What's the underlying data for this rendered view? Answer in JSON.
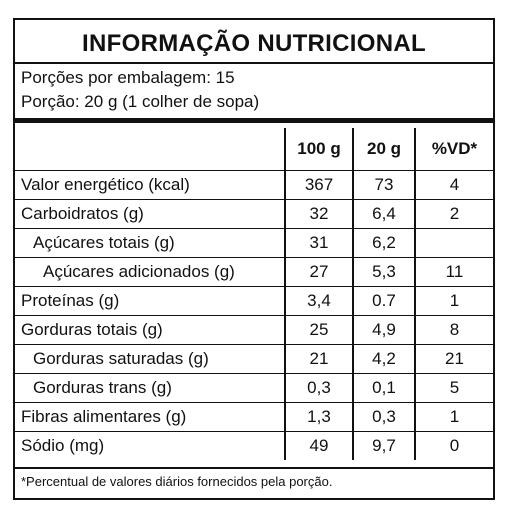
{
  "title": "INFORMAÇÃO NUTRICIONAL",
  "servings_per_package": "Porções por embalagem: 15",
  "serving_size": "Porção: 20 g (1 colher de sopa)",
  "columns": [
    "100 g",
    "20 g",
    "%VD*"
  ],
  "rows": [
    {
      "name": "Valor energético (kcal)",
      "indent": 0,
      "per100": "367",
      "per20": "73",
      "vd": "4"
    },
    {
      "name": "Carboidratos (g)",
      "indent": 0,
      "per100": "32",
      "per20": "6,4",
      "vd": "2"
    },
    {
      "name": "Açúcares totais (g)",
      "indent": 1,
      "per100": "31",
      "per20": "6,2",
      "vd": ""
    },
    {
      "name": "Açúcares adicionados (g)",
      "indent": 2,
      "per100": "27",
      "per20": "5,3",
      "vd": "11"
    },
    {
      "name": "Proteínas (g)",
      "indent": 0,
      "per100": "3,4",
      "per20": "0.7",
      "vd": "1"
    },
    {
      "name": "Gorduras totais (g)",
      "indent": 0,
      "per100": "25",
      "per20": "4,9",
      "vd": "8"
    },
    {
      "name": "Gorduras saturadas (g)",
      "indent": 1,
      "per100": "21",
      "per20": "4,2",
      "vd": "21"
    },
    {
      "name": "Gorduras trans (g)",
      "indent": 1,
      "per100": "0,3",
      "per20": "0,1",
      "vd": "5"
    },
    {
      "name": "Fibras alimentares (g)",
      "indent": 0,
      "per100": "1,3",
      "per20": "0,3",
      "vd": "1"
    },
    {
      "name": "Sódio (mg)",
      "indent": 0,
      "per100": "49",
      "per20": "9,7",
      "vd": "0"
    }
  ],
  "footnote": "*Percentual de valores diários fornecidos pela porção."
}
